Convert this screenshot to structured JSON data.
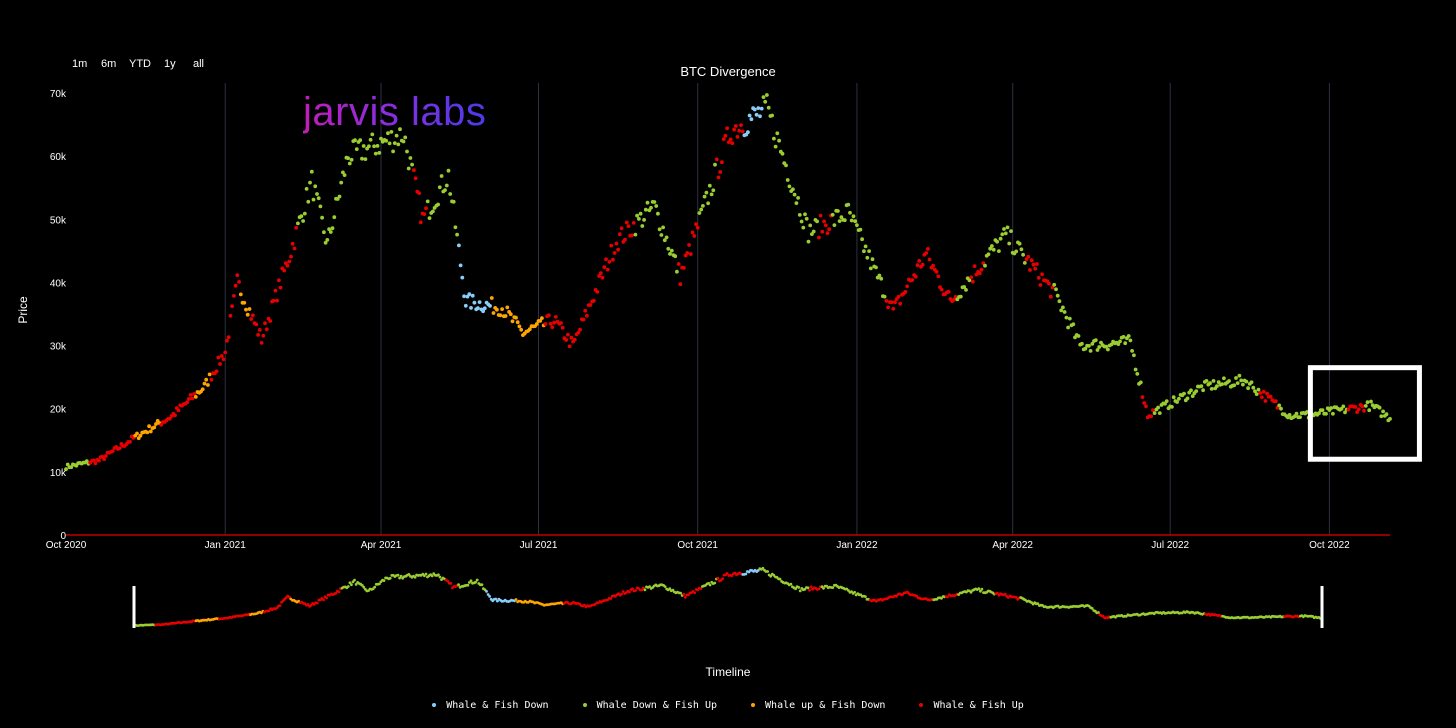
{
  "range_buttons": [
    "1m",
    "6m",
    "YTD",
    "1y",
    "all"
  ],
  "logo_text": "jarvis labs",
  "chart_data": {
    "type": "scatter",
    "title": "BTC Divergence",
    "ylabel": "Price",
    "xlabel": "Timeline",
    "ylim": [
      0,
      70000
    ],
    "y_ticks": [
      "0",
      "10k",
      "20k",
      "30k",
      "40k",
      "50k",
      "60k",
      "70k"
    ],
    "y_tick_values": [
      0,
      10000,
      20000,
      30000,
      40000,
      50000,
      60000,
      70000
    ],
    "x_start": "2020-10-01",
    "x_end": "2022-11-05",
    "x_ticks": [
      {
        "date": "2020-10-01",
        "label": "Oct 2020"
      },
      {
        "date": "2021-01-01",
        "label": "Jan 2021"
      },
      {
        "date": "2021-04-01",
        "label": "Apr 2021"
      },
      {
        "date": "2021-07-01",
        "label": "Jul 2021"
      },
      {
        "date": "2021-10-01",
        "label": "Oct 2021"
      },
      {
        "date": "2022-01-01",
        "label": "Jan 2022"
      },
      {
        "date": "2022-04-01",
        "label": "Apr 2022"
      },
      {
        "date": "2022-07-01",
        "label": "Jul 2022"
      },
      {
        "date": "2022-10-01",
        "label": "Oct 2022"
      }
    ],
    "grid": "vertical",
    "legend_position": "bottom",
    "series_colors": {
      "Whale & Fish Down": "#87cefa",
      "Whale Down & Fish Up": "#9acd32",
      "Whale up & Fish Down": "#ffa500",
      "Whale & Fish Up": "#e60000"
    },
    "price_path": [
      [
        "2020-10-01",
        10800
      ],
      [
        "2020-10-20",
        11800
      ],
      [
        "2020-11-10",
        15500
      ],
      [
        "2020-12-01",
        18800
      ],
      [
        "2020-12-20",
        23500
      ],
      [
        "2021-01-01",
        29000
      ],
      [
        "2021-01-08",
        40000
      ],
      [
        "2021-01-22",
        31000
      ],
      [
        "2021-02-08",
        45000
      ],
      [
        "2021-02-20",
        56000
      ],
      [
        "2021-03-01",
        46000
      ],
      [
        "2021-03-13",
        60000
      ],
      [
        "2021-04-14",
        63500
      ],
      [
        "2021-04-25",
        50000
      ],
      [
        "2021-05-10",
        57000
      ],
      [
        "2021-05-20",
        37000
      ],
      [
        "2021-06-10",
        36000
      ],
      [
        "2021-06-22",
        32000
      ],
      [
        "2021-07-10",
        34000
      ],
      [
        "2021-07-21",
        30000
      ],
      [
        "2021-08-15",
        46500
      ],
      [
        "2021-09-06",
        52000
      ],
      [
        "2021-09-21",
        41000
      ],
      [
        "2021-10-20",
        64000
      ],
      [
        "2021-11-10",
        67500
      ],
      [
        "2021-12-04",
        48000
      ],
      [
        "2021-12-27",
        51000
      ],
      [
        "2022-01-22",
        35500
      ],
      [
        "2022-02-10",
        44500
      ],
      [
        "2022-02-24",
        37000
      ],
      [
        "2022-03-28",
        47500
      ],
      [
        "2022-04-26",
        38000
      ],
      [
        "2022-05-10",
        30000
      ],
      [
        "2022-06-08",
        30500
      ],
      [
        "2022-06-18",
        19000
      ],
      [
        "2022-07-20",
        23500
      ],
      [
        "2022-08-13",
        24500
      ],
      [
        "2022-09-08",
        19000
      ],
      [
        "2022-09-20",
        19000
      ],
      [
        "2022-10-25",
        20500
      ],
      [
        "2022-11-05",
        18500
      ]
    ],
    "segments": [
      [
        "2020-10-01",
        "Whale Down & Fish Up"
      ],
      [
        "2020-10-15",
        "Whale & Fish Up"
      ],
      [
        "2020-11-10",
        "Whale up & Fish Down"
      ],
      [
        "2020-11-25",
        "Whale & Fish Up"
      ],
      [
        "2020-12-15",
        "Whale up & Fish Down"
      ],
      [
        "2020-12-24",
        "Whale & Fish Up"
      ],
      [
        "2021-01-10",
        "Whale up & Fish Down"
      ],
      [
        "2021-01-16",
        "Whale & Fish Up"
      ],
      [
        "2021-02-12",
        "Whale Down & Fish Up"
      ],
      [
        "2021-04-20",
        "Whale & Fish Up"
      ],
      [
        "2021-04-28",
        "Whale Down & Fish Up"
      ],
      [
        "2021-05-16",
        "Whale & Fish Down"
      ],
      [
        "2021-06-04",
        "Whale up & Fish Down"
      ],
      [
        "2021-07-05",
        "Whale & Fish Up"
      ],
      [
        "2021-08-26",
        "Whale Down & Fish Up"
      ],
      [
        "2021-09-20",
        "Whale & Fish Up"
      ],
      [
        "2021-10-02",
        "Whale Down & Fish Up"
      ],
      [
        "2021-10-12",
        "Whale & Fish Up"
      ],
      [
        "2021-10-28",
        "Whale & Fish Down"
      ],
      [
        "2021-11-08",
        "Whale Down & Fish Up"
      ],
      [
        "2021-12-10",
        "Whale & Fish Up"
      ],
      [
        "2021-12-18",
        "Whale Down & Fish Up"
      ],
      [
        "2022-01-18",
        "Whale & Fish Up"
      ],
      [
        "2022-02-28",
        "Whale Down & Fish Up"
      ],
      [
        "2022-03-08",
        "Whale & Fish Up"
      ],
      [
        "2022-03-16",
        "Whale Down & Fish Up"
      ],
      [
        "2022-04-09",
        "Whale & Fish Up"
      ],
      [
        "2022-04-25",
        "Whale Down & Fish Up"
      ],
      [
        "2022-06-15",
        "Whale & Fish Up"
      ],
      [
        "2022-06-22",
        "Whale Down & Fish Up"
      ],
      [
        "2022-08-22",
        "Whale & Fish Up"
      ],
      [
        "2022-09-02",
        "Whale Down & Fish Up"
      ],
      [
        "2022-10-12",
        "Whale & Fish Up"
      ],
      [
        "2022-10-22",
        "Whale Down & Fish Up"
      ]
    ],
    "highlight_box": {
      "from": "2022-09-20",
      "to": "2022-11-22",
      "ymin": 12000,
      "ymax": 26500
    }
  }
}
